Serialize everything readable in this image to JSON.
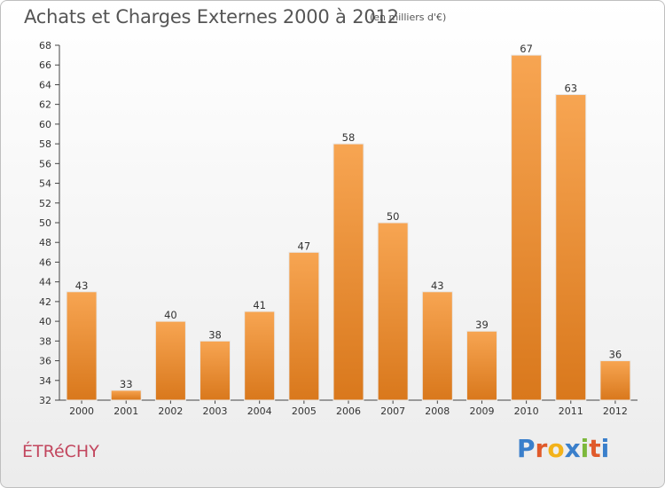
{
  "header": {
    "title": "Achats et Charges Externes 2000 à 2012",
    "subtitle": "(en milliers d'€)"
  },
  "footer": {
    "commune": "ÉTRéCHY",
    "logo_text": "Proxiti"
  },
  "colors": {
    "bar_top": "#f7a552",
    "bar_bottom": "#d9781c",
    "commune": "#c2465e",
    "logo_letters": [
      "#3a7fcb",
      "#e05a2b",
      "#f3b21a",
      "#3a7fcb",
      "#7cb83b",
      "#e05a2b",
      "#3a7fcb"
    ]
  },
  "chart_data": {
    "type": "bar",
    "categories": [
      "2000",
      "2001",
      "2002",
      "2003",
      "2004",
      "2005",
      "2006",
      "2007",
      "2008",
      "2009",
      "2010",
      "2011",
      "2012"
    ],
    "values": [
      43,
      33,
      40,
      38,
      41,
      47,
      58,
      50,
      43,
      39,
      67,
      63,
      36
    ],
    "ylim": [
      32,
      68
    ],
    "yticks": [
      32,
      34,
      36,
      38,
      40,
      42,
      44,
      46,
      48,
      50,
      52,
      54,
      56,
      58,
      60,
      62,
      64,
      66,
      68
    ],
    "grid": false,
    "legend": "none"
  }
}
